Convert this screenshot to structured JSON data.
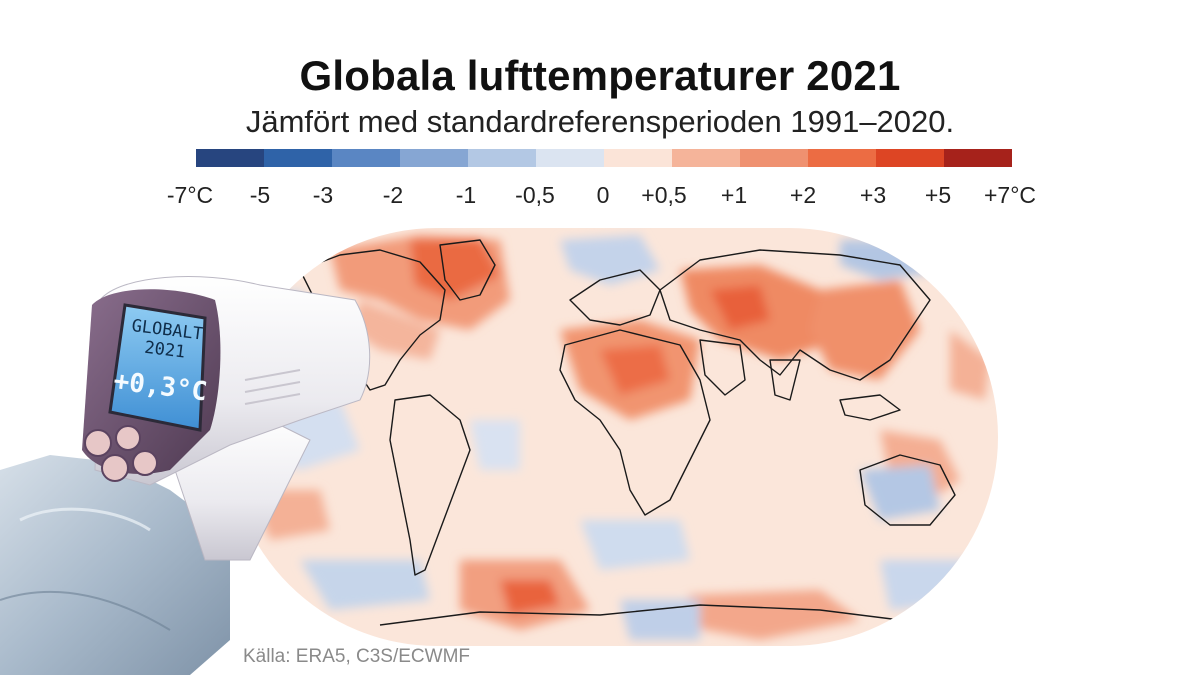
{
  "header": {
    "title": "Globala lufttemperaturer 2021",
    "subtitle": "Jämfört med standardreferensperioden 1991–2020."
  },
  "legend": {
    "colors": [
      "#27457f",
      "#2f63a8",
      "#5a86c3",
      "#86a6d3",
      "#b3c8e4",
      "#dbe4f1",
      "#fbe4d8",
      "#f5b49a",
      "#ef9170",
      "#ec6c43",
      "#dd4524",
      "#a6221b"
    ],
    "labels": [
      "-7°C",
      "-5",
      "-3",
      "-2",
      "-1",
      "-0,5",
      "0",
      "+0,5",
      "+1",
      "+2",
      "+3",
      "+5",
      "+7°C"
    ]
  },
  "thermometer": {
    "line1": "GLOBALT",
    "line2": "2021",
    "reading": "+0,3°C"
  },
  "source": "Källa: ERA5, C3S/ECWMF"
}
